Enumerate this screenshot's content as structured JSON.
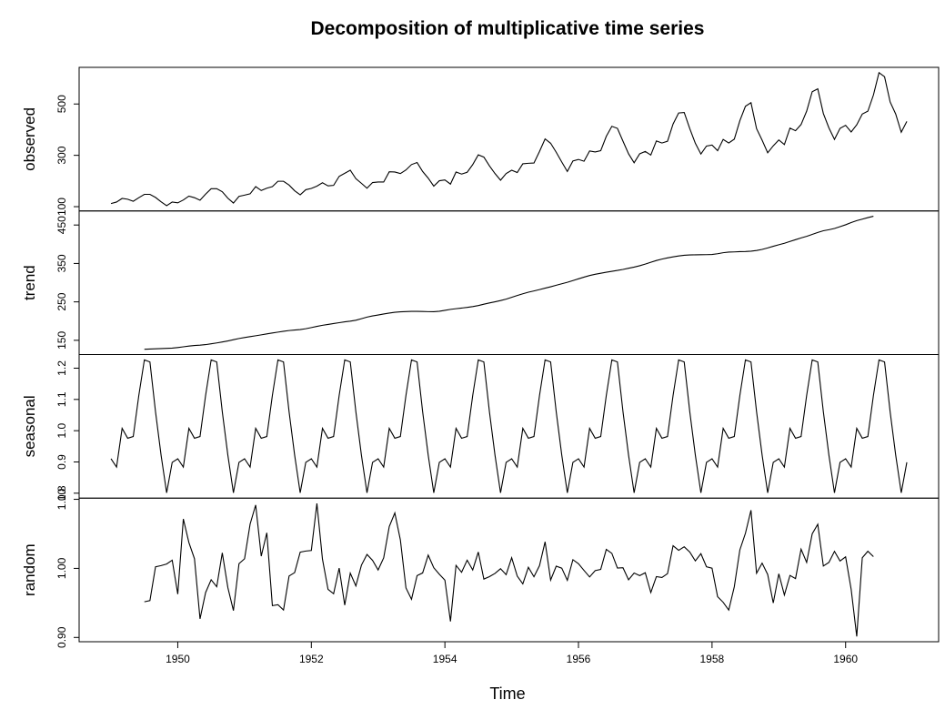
{
  "chart_data": {
    "type": "line",
    "title": "Decomposition of multiplicative time series",
    "x_label": "Time",
    "xlim": [
      1948.523,
      1961.393
    ],
    "xticks": [
      1950,
      1952,
      1954,
      1956,
      1958,
      1960
    ],
    "color": "#000000",
    "x": [
      1949,
      1949.0833,
      1949.1667,
      1949.25,
      1949.3333,
      1949.4167,
      1949.5,
      1949.5833,
      1949.6667,
      1949.75,
      1949.8333,
      1949.9167,
      1950,
      1950.0833,
      1950.1667,
      1950.25,
      1950.3333,
      1950.4167,
      1950.5,
      1950.5833,
      1950.6667,
      1950.75,
      1950.8333,
      1950.9167,
      1951,
      1951.0833,
      1951.1667,
      1951.25,
      1951.3333,
      1951.4167,
      1951.5,
      1951.5833,
      1951.6667,
      1951.75,
      1951.8333,
      1951.9167,
      1952,
      1952.0833,
      1952.1667,
      1952.25,
      1952.3333,
      1952.4167,
      1952.5,
      1952.5833,
      1952.6667,
      1952.75,
      1952.8333,
      1952.9167,
      1953,
      1953.0833,
      1953.1667,
      1953.25,
      1953.3333,
      1953.4167,
      1953.5,
      1953.5833,
      1953.6667,
      1953.75,
      1953.8333,
      1953.9167,
      1954,
      1954.0833,
      1954.1667,
      1954.25,
      1954.3333,
      1954.4167,
      1954.5,
      1954.5833,
      1954.6667,
      1954.75,
      1954.8333,
      1954.9167,
      1955,
      1955.0833,
      1955.1667,
      1955.25,
      1955.3333,
      1955.4167,
      1955.5,
      1955.5833,
      1955.6667,
      1955.75,
      1955.8333,
      1955.9167,
      1956,
      1956.0833,
      1956.1667,
      1956.25,
      1956.3333,
      1956.4167,
      1956.5,
      1956.5833,
      1956.6667,
      1956.75,
      1956.8333,
      1956.9167,
      1957,
      1957.0833,
      1957.1667,
      1957.25,
      1957.3333,
      1957.4167,
      1957.5,
      1957.5833,
      1957.6667,
      1957.75,
      1957.8333,
      1957.9167,
      1958,
      1958.0833,
      1958.1667,
      1958.25,
      1958.3333,
      1958.4167,
      1958.5,
      1958.5833,
      1958.6667,
      1958.75,
      1958.8333,
      1958.9167,
      1959,
      1959.0833,
      1959.1667,
      1959.25,
      1959.3333,
      1959.4167,
      1959.5,
      1959.5833,
      1959.6667,
      1959.75,
      1959.8333,
      1959.9167,
      1960,
      1960.0833,
      1960.1667,
      1960.25,
      1960.3333,
      1960.4167,
      1960.5,
      1960.5833,
      1960.6667,
      1960.75,
      1960.8333,
      1960.9167
    ],
    "panels": [
      {
        "y_label": "observed",
        "ylim": [
          83.28,
          642.72
        ],
        "yticks": [
          100,
          300,
          500
        ],
        "values": [
          112,
          118,
          132,
          129,
          121,
          135,
          148,
          148,
          136,
          119,
          104,
          118,
          115,
          126,
          141,
          135,
          125,
          149,
          170,
          170,
          158,
          133,
          114,
          140,
          145,
          150,
          178,
          163,
          172,
          178,
          199,
          199,
          184,
          162,
          146,
          166,
          171,
          180,
          193,
          181,
          183,
          218,
          230,
          242,
          209,
          191,
          172,
          194,
          196,
          196,
          236,
          235,
          229,
          243,
          264,
          272,
          237,
          211,
          180,
          201,
          204,
          188,
          235,
          227,
          234,
          264,
          302,
          293,
          259,
          229,
          203,
          229,
          242,
          233,
          267,
          269,
          270,
          315,
          364,
          347,
          312,
          274,
          237,
          278,
          284,
          277,
          317,
          313,
          318,
          374,
          413,
          405,
          355,
          306,
          271,
          306,
          315,
          301,
          356,
          348,
          355,
          422,
          465,
          467,
          404,
          347,
          305,
          336,
          340,
          318,
          362,
          348,
          363,
          435,
          491,
          505,
          404,
          359,
          310,
          337,
          360,
          342,
          406,
          396,
          420,
          472,
          548,
          559,
          463,
          407,
          362,
          405,
          417,
          391,
          419,
          461,
          472,
          535,
          622,
          606,
          508,
          461,
          390,
          432
        ]
      },
      {
        "y_label": "trend",
        "ylim": [
          112.95,
          486.59
        ],
        "yticks": [
          150,
          250,
          350,
          450
        ],
        "values": [
          null,
          null,
          null,
          null,
          null,
          null,
          126.7917,
          127.25,
          127.9583,
          128.5833,
          129,
          129.75,
          131.25,
          133.0833,
          134.9167,
          136.4167,
          137.4167,
          138.75,
          140.9167,
          143.1667,
          145.7083,
          148.4167,
          151.5417,
          154.7083,
          157.125,
          159.5417,
          161.8333,
          164.125,
          166.6667,
          169.0833,
          171.25,
          173.5833,
          175.4583,
          176.8333,
          178.0417,
          180.1667,
          183.125,
          186.2083,
          189.0417,
          191.2917,
          193.5833,
          195.8333,
          198.0417,
          199.75,
          202.2083,
          206.25,
          210.4167,
          213.375,
          215.8333,
          218.5,
          220.9167,
          222.9167,
          224.0833,
          224.7083,
          225.3333,
          225.3333,
          224.9583,
          224.5833,
          224.4583,
          225.5417,
          228,
          230.4583,
          232.25,
          233.9167,
          235.625,
          237.75,
          240.5,
          243.9583,
          247.1667,
          250.25,
          253.5,
          257.125,
          261.8333,
          266.6667,
          271.125,
          275.2083,
          278.5,
          281.9583,
          285.75,
          289.3333,
          293.25,
          297.1667,
          301,
          305.4583,
          309.9583,
          314.4167,
          318.625,
          321.75,
          324.5,
          327.0833,
          329.5417,
          331.8333,
          334.4583,
          337.5417,
          340.5417,
          344.0833,
          348.25,
          353,
          357.625,
          361.375,
          364.5,
          367.1667,
          369.4583,
          371.2083,
          372.1667,
          372.4167,
          372.75,
          372.9167,
          373.4167,
          375.25,
          377.9167,
          379.5,
          380,
          380.7083,
          380.9583,
          381.8333,
          383.6667,
          386.5,
          390.3333,
          394.7083,
          398.625,
          402.5417,
          407.1667,
          411.875,
          416.3333,
          420.5,
          425.5,
          430.7083,
          435.125,
          437.7083,
          440.9583,
          445.8333,
          450.625,
          456.3333,
          461.375,
          465.2083,
          469.3333,
          472.75,
          null,
          null,
          null,
          null,
          null,
          null
        ]
      },
      {
        "y_label": "seasonal",
        "ylim": [
          0.7842,
          1.2436
        ],
        "yticks": [
          0.8,
          0.9,
          {
            "value": 1,
            "label": "1.0"
          },
          1.1,
          1.2
        ],
        "values": [
          0.9102,
          0.8836,
          1.0074,
          0.9759,
          0.9814,
          1.1128,
          1.2266,
          1.2199,
          1.0605,
          0.9218,
          0.8012,
          0.8988,
          0.9102,
          0.8836,
          1.0074,
          0.9759,
          0.9814,
          1.1128,
          1.2266,
          1.2199,
          1.0605,
          0.9218,
          0.8012,
          0.8988,
          0.9102,
          0.8836,
          1.0074,
          0.9759,
          0.9814,
          1.1128,
          1.2266,
          1.2199,
          1.0605,
          0.9218,
          0.8012,
          0.8988,
          0.9102,
          0.8836,
          1.0074,
          0.9759,
          0.9814,
          1.1128,
          1.2266,
          1.2199,
          1.0605,
          0.9218,
          0.8012,
          0.8988,
          0.9102,
          0.8836,
          1.0074,
          0.9759,
          0.9814,
          1.1128,
          1.2266,
          1.2199,
          1.0605,
          0.9218,
          0.8012,
          0.8988,
          0.9102,
          0.8836,
          1.0074,
          0.9759,
          0.9814,
          1.1128,
          1.2266,
          1.2199,
          1.0605,
          0.9218,
          0.8012,
          0.8988,
          0.9102,
          0.8836,
          1.0074,
          0.9759,
          0.9814,
          1.1128,
          1.2266,
          1.2199,
          1.0605,
          0.9218,
          0.8012,
          0.8988,
          0.9102,
          0.8836,
          1.0074,
          0.9759,
          0.9814,
          1.1128,
          1.2266,
          1.2199,
          1.0605,
          0.9218,
          0.8012,
          0.8988,
          0.9102,
          0.8836,
          1.0074,
          0.9759,
          0.9814,
          1.1128,
          1.2266,
          1.2199,
          1.0605,
          0.9218,
          0.8012,
          0.8988,
          0.9102,
          0.8836,
          1.0074,
          0.9759,
          0.9814,
          1.1128,
          1.2266,
          1.2199,
          1.0605,
          0.9218,
          0.8012,
          0.8988,
          0.9102,
          0.8836,
          1.0074,
          0.9759,
          0.9814,
          1.1128,
          1.2266,
          1.2199,
          1.0605,
          0.9218,
          0.8012,
          0.8988,
          0.9102,
          0.8836,
          1.0074,
          0.9759,
          0.9814,
          1.1128,
          1.2266,
          1.2199,
          1.0605,
          0.9218,
          0.8012,
          0.8988
        ]
      },
      {
        "y_label": "random",
        "ylim": [
          0.8938,
          1.1017
        ],
        "yticks": [
          {
            "value": 0.9,
            "label": "0.90"
          },
          {
            "value": 1,
            "label": "1.00"
          },
          {
            "value": 1.1,
            "label": "1.10"
          }
        ],
        "values": [
          null,
          null,
          null,
          null,
          null,
          null,
          0.9516,
          0.9534,
          1.0022,
          1.004,
          1.0063,
          1.0118,
          0.9627,
          1.0715,
          1.0374,
          1.014,
          0.9269,
          0.965,
          0.9835,
          0.9734,
          1.0225,
          0.9722,
          0.9389,
          1.0068,
          1.0139,
          1.0641,
          1.0918,
          1.0177,
          1.0515,
          0.946,
          0.9474,
          0.9398,
          0.9889,
          0.9939,
          1.0235,
          1.0251,
          1.0259,
          1.094,
          1.0134,
          0.9696,
          0.9633,
          1.0004,
          0.9468,
          0.9931,
          0.9746,
          1.0046,
          1.0202,
          1.0116,
          0.9977,
          1.0152,
          1.0604,
          1.0803,
          1.0413,
          0.9718,
          0.9552,
          0.9895,
          0.9934,
          1.0192,
          1.0009,
          0.9915,
          0.983,
          0.9232,
          1.0044,
          0.9944,
          1.0119,
          0.9978,
          1.0237,
          0.9845,
          0.9881,
          0.9927,
          0.9995,
          0.9909,
          1.0154,
          0.9888,
          0.9776,
          1.0016,
          0.9879,
          1.004,
          1.0385,
          0.9831,
          1.0032,
          1.0003,
          0.9827,
          1.0126,
          1.0067,
          0.997,
          0.9876,
          0.9968,
          0.9985,
          1.0275,
          1.0217,
          1.0005,
          1.0009,
          0.9835,
          0.9933,
          0.9895,
          0.9937,
          0.965,
          0.9881,
          0.9868,
          0.9924,
          1.0328,
          1.0261,
          1.0313,
          1.0236,
          1.0108,
          1.0213,
          1.0024,
          1.0003,
          0.9591,
          0.9509,
          0.9396,
          0.9734,
          1.0268,
          1.0508,
          1.0842,
          0.9929,
          1.0076,
          0.9912,
          0.9499,
          0.9922,
          0.9615,
          0.9898,
          0.9852,
          1.0279,
          1.0087,
          1.05,
          1.0639,
          1.0034,
          1.0087,
          1.0246,
          1.0107,
          1.0167,
          0.9697,
          0.9015,
          1.0154,
          1.0248,
          1.017,
          null,
          null,
          null,
          null,
          null,
          null
        ]
      }
    ]
  }
}
